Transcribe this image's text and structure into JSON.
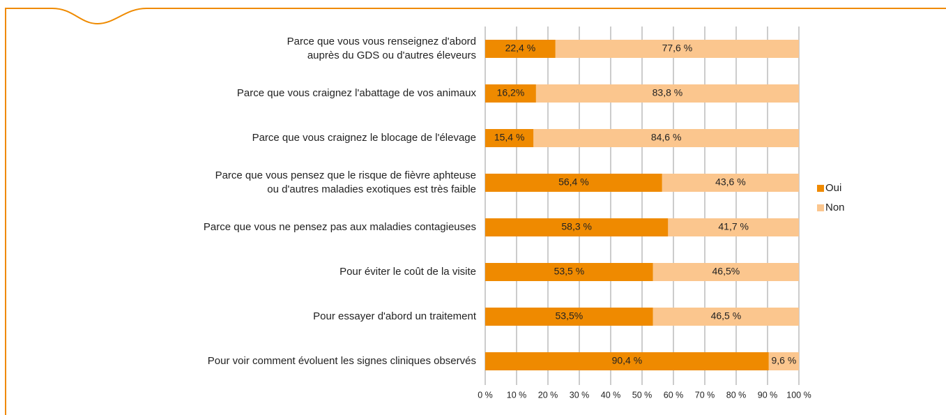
{
  "chart_data": {
    "type": "stacked-barh",
    "categories": [
      "Parce que vous vous renseignez d'abord\nauprès du GDS ou d'autres éleveurs",
      "Parce que vous craignez l'abattage de vos animaux",
      "Parce que vous craignez le blocage de l'élevage",
      "Parce que vous pensez que le risque de fièvre aphteuse\nou d'autres maladies exotiques est très faible",
      "Parce que vous ne pensez pas aux maladies contagieuses",
      "Pour éviter le coût de la visite",
      "Pour essayer d'abord un traitement",
      "Pour voir comment évoluent les signes cliniques observés"
    ],
    "series": [
      {
        "name": "Oui",
        "color": "#ef8a00",
        "values": [
          22.4,
          16.2,
          15.4,
          56.4,
          58.3,
          53.5,
          53.5,
          90.4
        ],
        "value_labels": [
          "22,4 %",
          "16,2%",
          "15,4 %",
          "56,4 %",
          "58,3 %",
          "53,5 %",
          "53,5%",
          "90,4 %"
        ]
      },
      {
        "name": "Non",
        "color": "#fbc68e",
        "values": [
          77.6,
          83.8,
          84.6,
          43.6,
          41.7,
          46.5,
          46.5,
          9.6
        ],
        "value_labels": [
          "77,6 %",
          "83,8 %",
          "84,6 %",
          "43,6 %",
          "41,7 %",
          "46,5%",
          "46,5 %",
          "9,6 %"
        ]
      }
    ],
    "xlim": [
      0,
      100
    ],
    "xticks": [
      {
        "value": 0,
        "label": "0 %"
      },
      {
        "value": 10,
        "label": "10 %"
      },
      {
        "value": 20,
        "label": "20 %"
      },
      {
        "value": 30,
        "label": "30 %"
      },
      {
        "value": 40,
        "label": "40 %"
      },
      {
        "value": 50,
        "label": "50 %"
      },
      {
        "value": 60,
        "label": "60 %"
      },
      {
        "value": 70,
        "label": "70 %"
      },
      {
        "value": 80,
        "label": "80 %"
      },
      {
        "value": 90,
        "label": "90 %"
      },
      {
        "value": 100,
        "label": "100 %"
      }
    ],
    "grid": true,
    "legend": "right"
  }
}
